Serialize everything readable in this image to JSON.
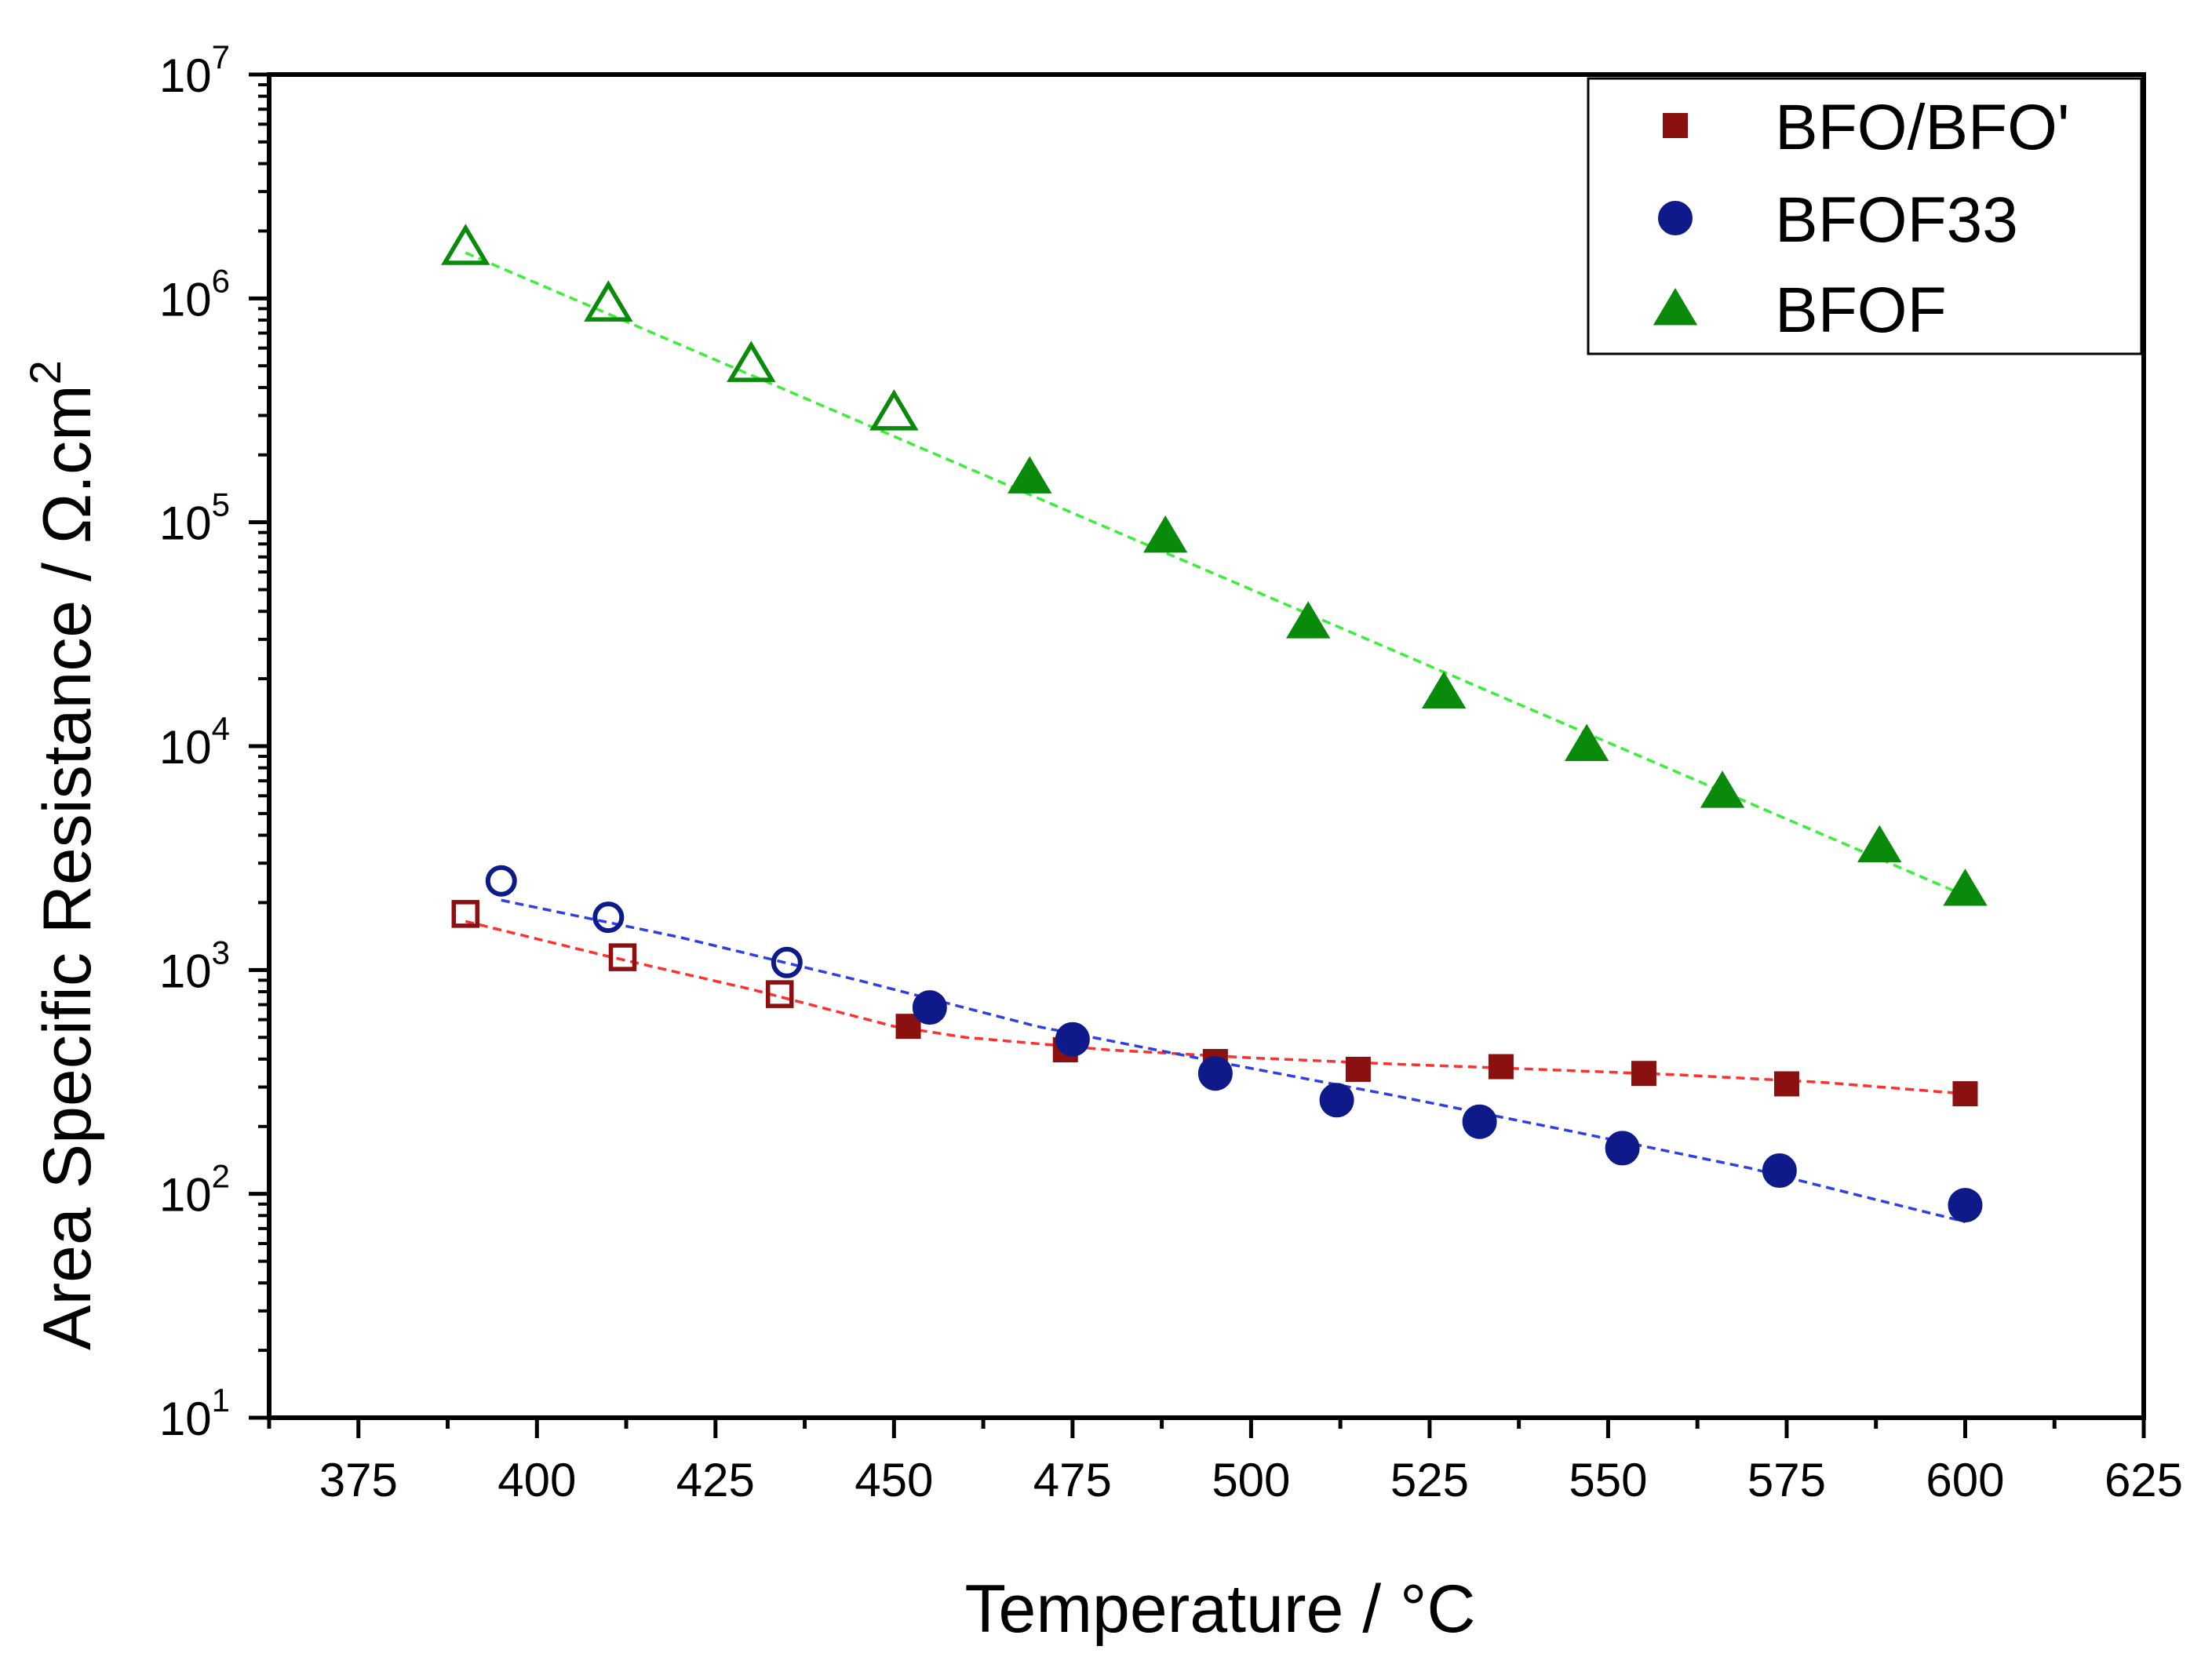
{
  "chart_data": {
    "type": "scatter",
    "title": "",
    "xlabel": "Temperature / °C",
    "ylabel": "Area Specific Resistance / Ω.cm",
    "ylabel_superscript": "2",
    "xlim": [
      362.5,
      625
    ],
    "ylim": [
      10,
      10000000
    ],
    "yscale": "log",
    "grid": false,
    "legend_position": "top-right",
    "x_ticks": [
      375,
      400,
      425,
      450,
      475,
      500,
      525,
      550,
      575,
      600,
      625
    ],
    "x_tick_labels": [
      "375",
      "400",
      "425",
      "450",
      "475",
      "500",
      "525",
      "550",
      "575",
      "600",
      "625"
    ],
    "y_ticks": [
      {
        "value": 10,
        "base": "10",
        "exp": "1"
      },
      {
        "value": 100,
        "base": "10",
        "exp": "2"
      },
      {
        "value": 1000,
        "base": "10",
        "exp": "3"
      },
      {
        "value": 10000,
        "base": "10",
        "exp": "4"
      },
      {
        "value": 100000,
        "base": "10",
        "exp": "5"
      },
      {
        "value": 1000000,
        "base": "10",
        "exp": "6"
      },
      {
        "value": 10000000,
        "base": "10",
        "exp": "7"
      }
    ],
    "series": [
      {
        "name": "BFO/BFO'",
        "marker": "square",
        "color": "#8b1010",
        "fit_color": "#ff3030",
        "points": [
          {
            "x": 390,
            "y": 1780,
            "filled": false
          },
          {
            "x": 412,
            "y": 1140,
            "filled": false
          },
          {
            "x": 434,
            "y": 780,
            "filled": false
          },
          {
            "x": 452,
            "y": 560,
            "filled": true
          },
          {
            "x": 474,
            "y": 440,
            "filled": true
          },
          {
            "x": 495,
            "y": 390,
            "filled": true
          },
          {
            "x": 515,
            "y": 360,
            "filled": true
          },
          {
            "x": 535,
            "y": 370,
            "filled": true
          },
          {
            "x": 555,
            "y": 345,
            "filled": true
          },
          {
            "x": 575,
            "y": 310,
            "filled": true
          },
          {
            "x": 600,
            "y": 280,
            "filled": true
          }
        ],
        "fit": [
          [
            390,
            1650
          ],
          [
            410,
            1150
          ],
          [
            430,
            820
          ],
          [
            450,
            560
          ],
          [
            460,
            500
          ],
          [
            480,
            440
          ],
          [
            500,
            405
          ],
          [
            520,
            380
          ],
          [
            540,
            360
          ],
          [
            560,
            340
          ],
          [
            580,
            315
          ],
          [
            600,
            280
          ]
        ]
      },
      {
        "name": "BFOF33",
        "marker": "circle",
        "color": "#0f1a8a",
        "fit_color": "#2f3fe8",
        "points": [
          {
            "x": 395,
            "y": 2500,
            "filled": false
          },
          {
            "x": 410,
            "y": 1720,
            "filled": false
          },
          {
            "x": 435,
            "y": 1080,
            "filled": false
          },
          {
            "x": 455,
            "y": 680,
            "filled": true
          },
          {
            "x": 475,
            "y": 490,
            "filled": true
          },
          {
            "x": 495,
            "y": 345,
            "filled": true
          },
          {
            "x": 512,
            "y": 262,
            "filled": true
          },
          {
            "x": 532,
            "y": 210,
            "filled": true
          },
          {
            "x": 552,
            "y": 160,
            "filled": true
          },
          {
            "x": 574,
            "y": 127,
            "filled": true
          },
          {
            "x": 600,
            "y": 89,
            "filled": true
          }
        ],
        "fit": [
          [
            395,
            2050
          ],
          [
            420,
            1400
          ],
          [
            445,
            900
          ],
          [
            470,
            560
          ],
          [
            495,
            390
          ],
          [
            520,
            275
          ],
          [
            545,
            190
          ],
          [
            570,
            130
          ],
          [
            590,
            90
          ],
          [
            600,
            75
          ]
        ]
      },
      {
        "name": "BFOF",
        "marker": "triangle",
        "color": "#0a8a0a",
        "fit_color": "#3aee3a",
        "points": [
          {
            "x": 390,
            "y": 1700000,
            "filled": false
          },
          {
            "x": 410,
            "y": 950000,
            "filled": false
          },
          {
            "x": 430,
            "y": 510000,
            "filled": false
          },
          {
            "x": 450,
            "y": 310000,
            "filled": false
          },
          {
            "x": 469,
            "y": 160000,
            "filled": true
          },
          {
            "x": 488,
            "y": 87000,
            "filled": true
          },
          {
            "x": 508,
            "y": 36000,
            "filled": true
          },
          {
            "x": 527,
            "y": 17500,
            "filled": true
          },
          {
            "x": 547,
            "y": 10200,
            "filled": true
          },
          {
            "x": 566,
            "y": 6300,
            "filled": true
          },
          {
            "x": 588,
            "y": 3600,
            "filled": true
          },
          {
            "x": 600,
            "y": 2300,
            "filled": true
          }
        ],
        "fit": [
          [
            390,
            1600000
          ],
          [
            600,
            2150
          ]
        ]
      }
    ]
  }
}
